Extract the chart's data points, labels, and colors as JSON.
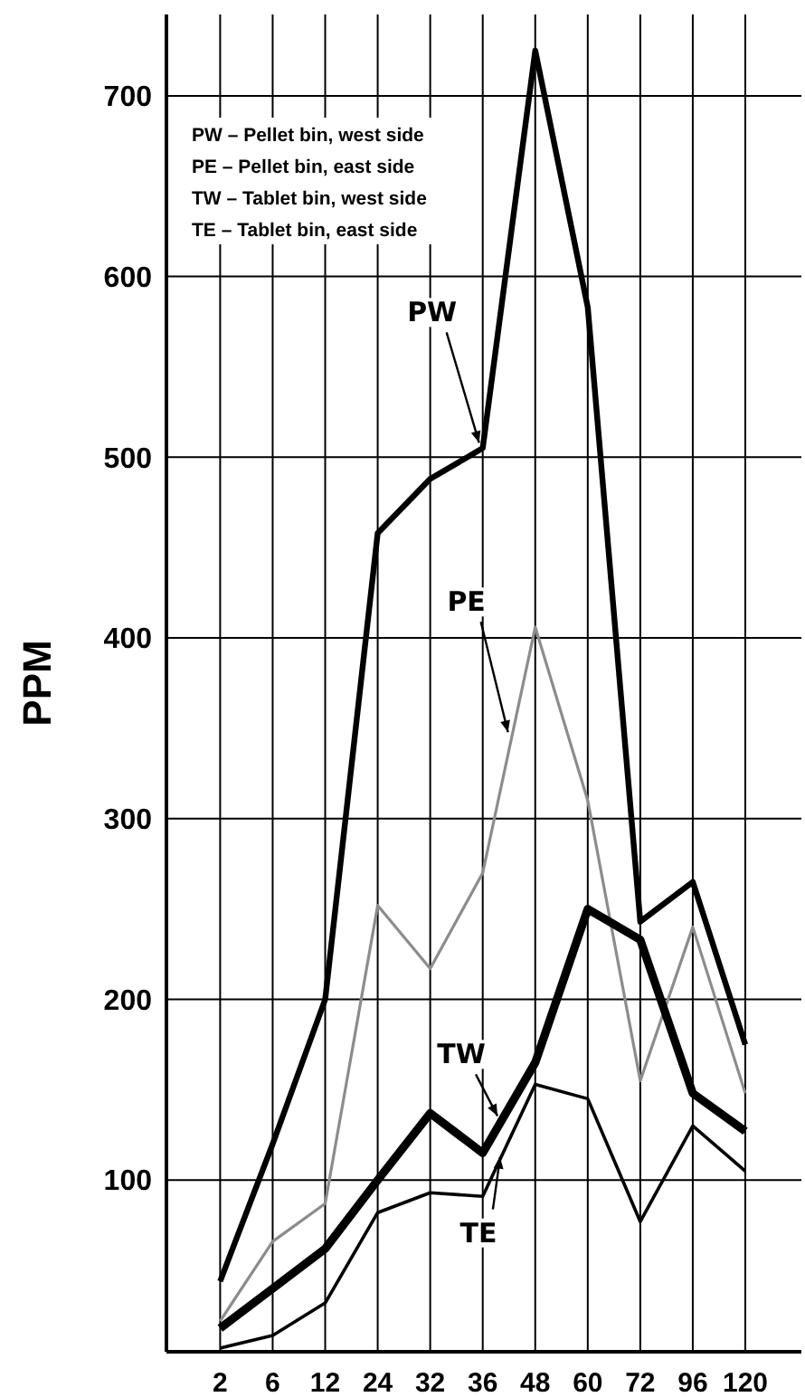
{
  "chart_data": {
    "type": "line",
    "ylabel": "PPM",
    "categories": [
      "2",
      "6",
      "12",
      "24",
      "32",
      "36",
      "48",
      "60",
      "72",
      "96",
      "120"
    ],
    "series": [
      {
        "name": "PW",
        "color": "#000000",
        "values": [
          44,
          120,
          200,
          458,
          488,
          505,
          725,
          583,
          243,
          265,
          175
        ]
      },
      {
        "name": "PE",
        "color": "#8c8c8c",
        "values": [
          22,
          66,
          87,
          252,
          217,
          270,
          406,
          310,
          155,
          240,
          148
        ]
      },
      {
        "name": "TW",
        "color": "#000000",
        "values": [
          18,
          40,
          62,
          100,
          137,
          115,
          165,
          250,
          233,
          148,
          127
        ]
      },
      {
        "name": "TE",
        "color": "#000000",
        "values": [
          7,
          14,
          32,
          82,
          93,
          91,
          153,
          145,
          77,
          130,
          105
        ]
      }
    ],
    "ylim": [
      5,
      745
    ],
    "yticks": [
      100,
      200,
      300,
      400,
      500,
      600,
      700
    ],
    "grid": true,
    "marker": "none",
    "line_style": "solid",
    "annotations": [
      "PW – Pellet bin, west side",
      "PE – Pellet bin, east side",
      "TW – Tablet bin, west side",
      "TE – Tablet bin, east side"
    ]
  }
}
